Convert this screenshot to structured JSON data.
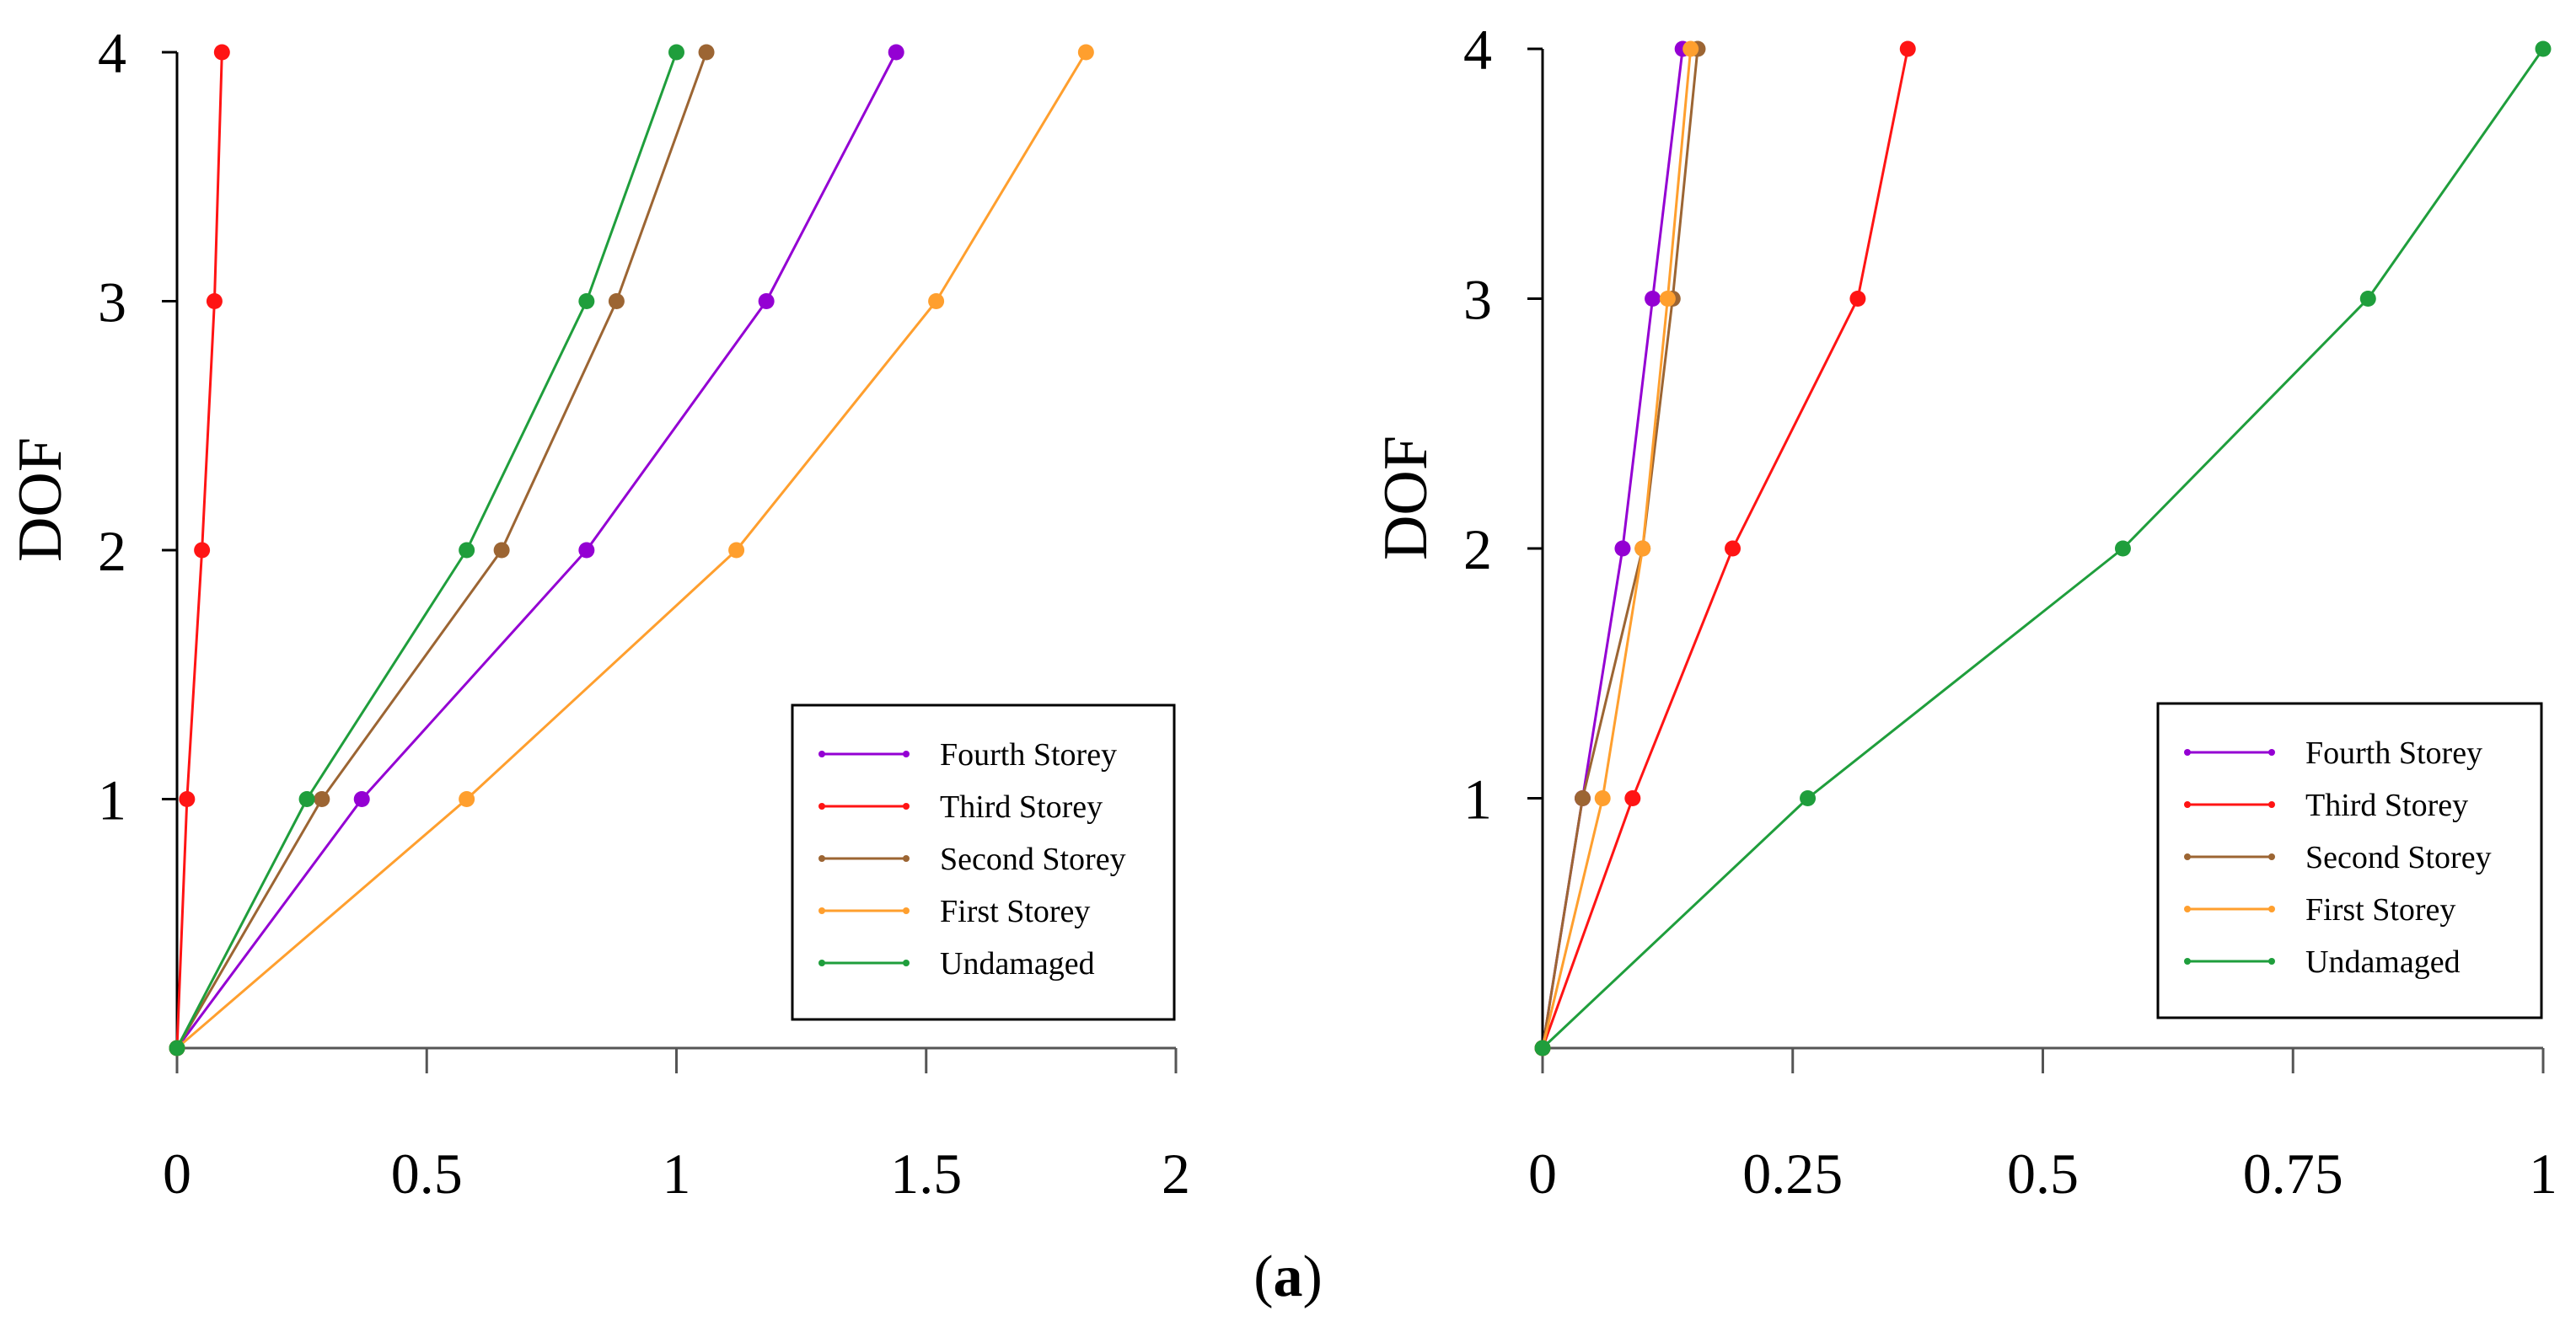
{
  "figure": {
    "caption": {
      "open": "(",
      "letter": "a",
      "close": ")"
    }
  },
  "colors": {
    "fourth": "#9400D3",
    "third": "#FF1414",
    "second": "#9C6533",
    "first": "#FF9F2E",
    "undamaged": "#1F9E3C",
    "axis": "#000000",
    "tick_axis": "#555555"
  },
  "chart_data": [
    {
      "type": "line",
      "title": "",
      "xlabel": "",
      "ylabel": "DOF",
      "xlim": [
        0,
        2
      ],
      "ylim": [
        0,
        4
      ],
      "xticks": [
        "0",
        "0.5",
        "1",
        "1.5",
        "2"
      ],
      "xtick_values": [
        0,
        0.5,
        1,
        1.5,
        2
      ],
      "yticks": [
        "1",
        "2",
        "3",
        "4"
      ],
      "ytick_values": [
        1,
        2,
        3,
        4
      ],
      "legend_position": "bottom-right",
      "series": [
        {
          "name": "Fourth Storey",
          "key": "fourth",
          "x": [
            0,
            0.37,
            0.82,
            1.18,
            1.44
          ],
          "y": [
            0,
            1,
            2,
            3,
            4
          ]
        },
        {
          "name": "Third Storey",
          "key": "third",
          "x": [
            0,
            0.02,
            0.05,
            0.075,
            0.09
          ],
          "y": [
            0,
            1,
            2,
            3,
            4
          ]
        },
        {
          "name": "Second Storey",
          "key": "second",
          "x": [
            0,
            0.29,
            0.65,
            0.88,
            1.06
          ],
          "y": [
            0,
            1,
            2,
            3,
            4
          ]
        },
        {
          "name": "First Storey",
          "key": "first",
          "x": [
            0,
            0.58,
            1.12,
            1.52,
            1.82
          ],
          "y": [
            0,
            1,
            2,
            3,
            4
          ]
        },
        {
          "name": "Undamaged",
          "key": "undamaged",
          "x": [
            0,
            0.26,
            0.58,
            0.82,
            1.0
          ],
          "y": [
            0,
            1,
            2,
            3,
            4
          ]
        }
      ]
    },
    {
      "type": "line",
      "title": "",
      "xlabel": "",
      "ylabel": "DOF",
      "xlim": [
        0,
        1
      ],
      "ylim": [
        0,
        4
      ],
      "xticks": [
        "0",
        "0.25",
        "0.5",
        "0.75",
        "1"
      ],
      "xtick_values": [
        0,
        0.25,
        0.5,
        0.75,
        1
      ],
      "yticks": [
        "1",
        "2",
        "3",
        "4"
      ],
      "ytick_values": [
        1,
        2,
        3,
        4
      ],
      "legend_position": "bottom-right",
      "series": [
        {
          "name": "Fourth Storey",
          "key": "fourth",
          "x": [
            0,
            0.04,
            0.08,
            0.11,
            0.14
          ],
          "y": [
            0,
            1,
            2,
            3,
            4
          ]
        },
        {
          "name": "Third Storey",
          "key": "third",
          "x": [
            0,
            0.09,
            0.19,
            0.315,
            0.365
          ],
          "y": [
            0,
            1,
            2,
            3,
            4
          ]
        },
        {
          "name": "Second Storey",
          "key": "second",
          "x": [
            0,
            0.04,
            0.1,
            0.13,
            0.155
          ],
          "y": [
            0,
            1,
            2,
            3,
            4
          ]
        },
        {
          "name": "First Storey",
          "key": "first",
          "x": [
            0,
            0.06,
            0.1,
            0.125,
            0.148
          ],
          "y": [
            0,
            1,
            2,
            3,
            4
          ]
        },
        {
          "name": "Undamaged",
          "key": "undamaged",
          "x": [
            0,
            0.265,
            0.58,
            0.825,
            1.0
          ],
          "y": [
            0,
            1,
            2,
            3,
            4
          ]
        }
      ]
    }
  ]
}
